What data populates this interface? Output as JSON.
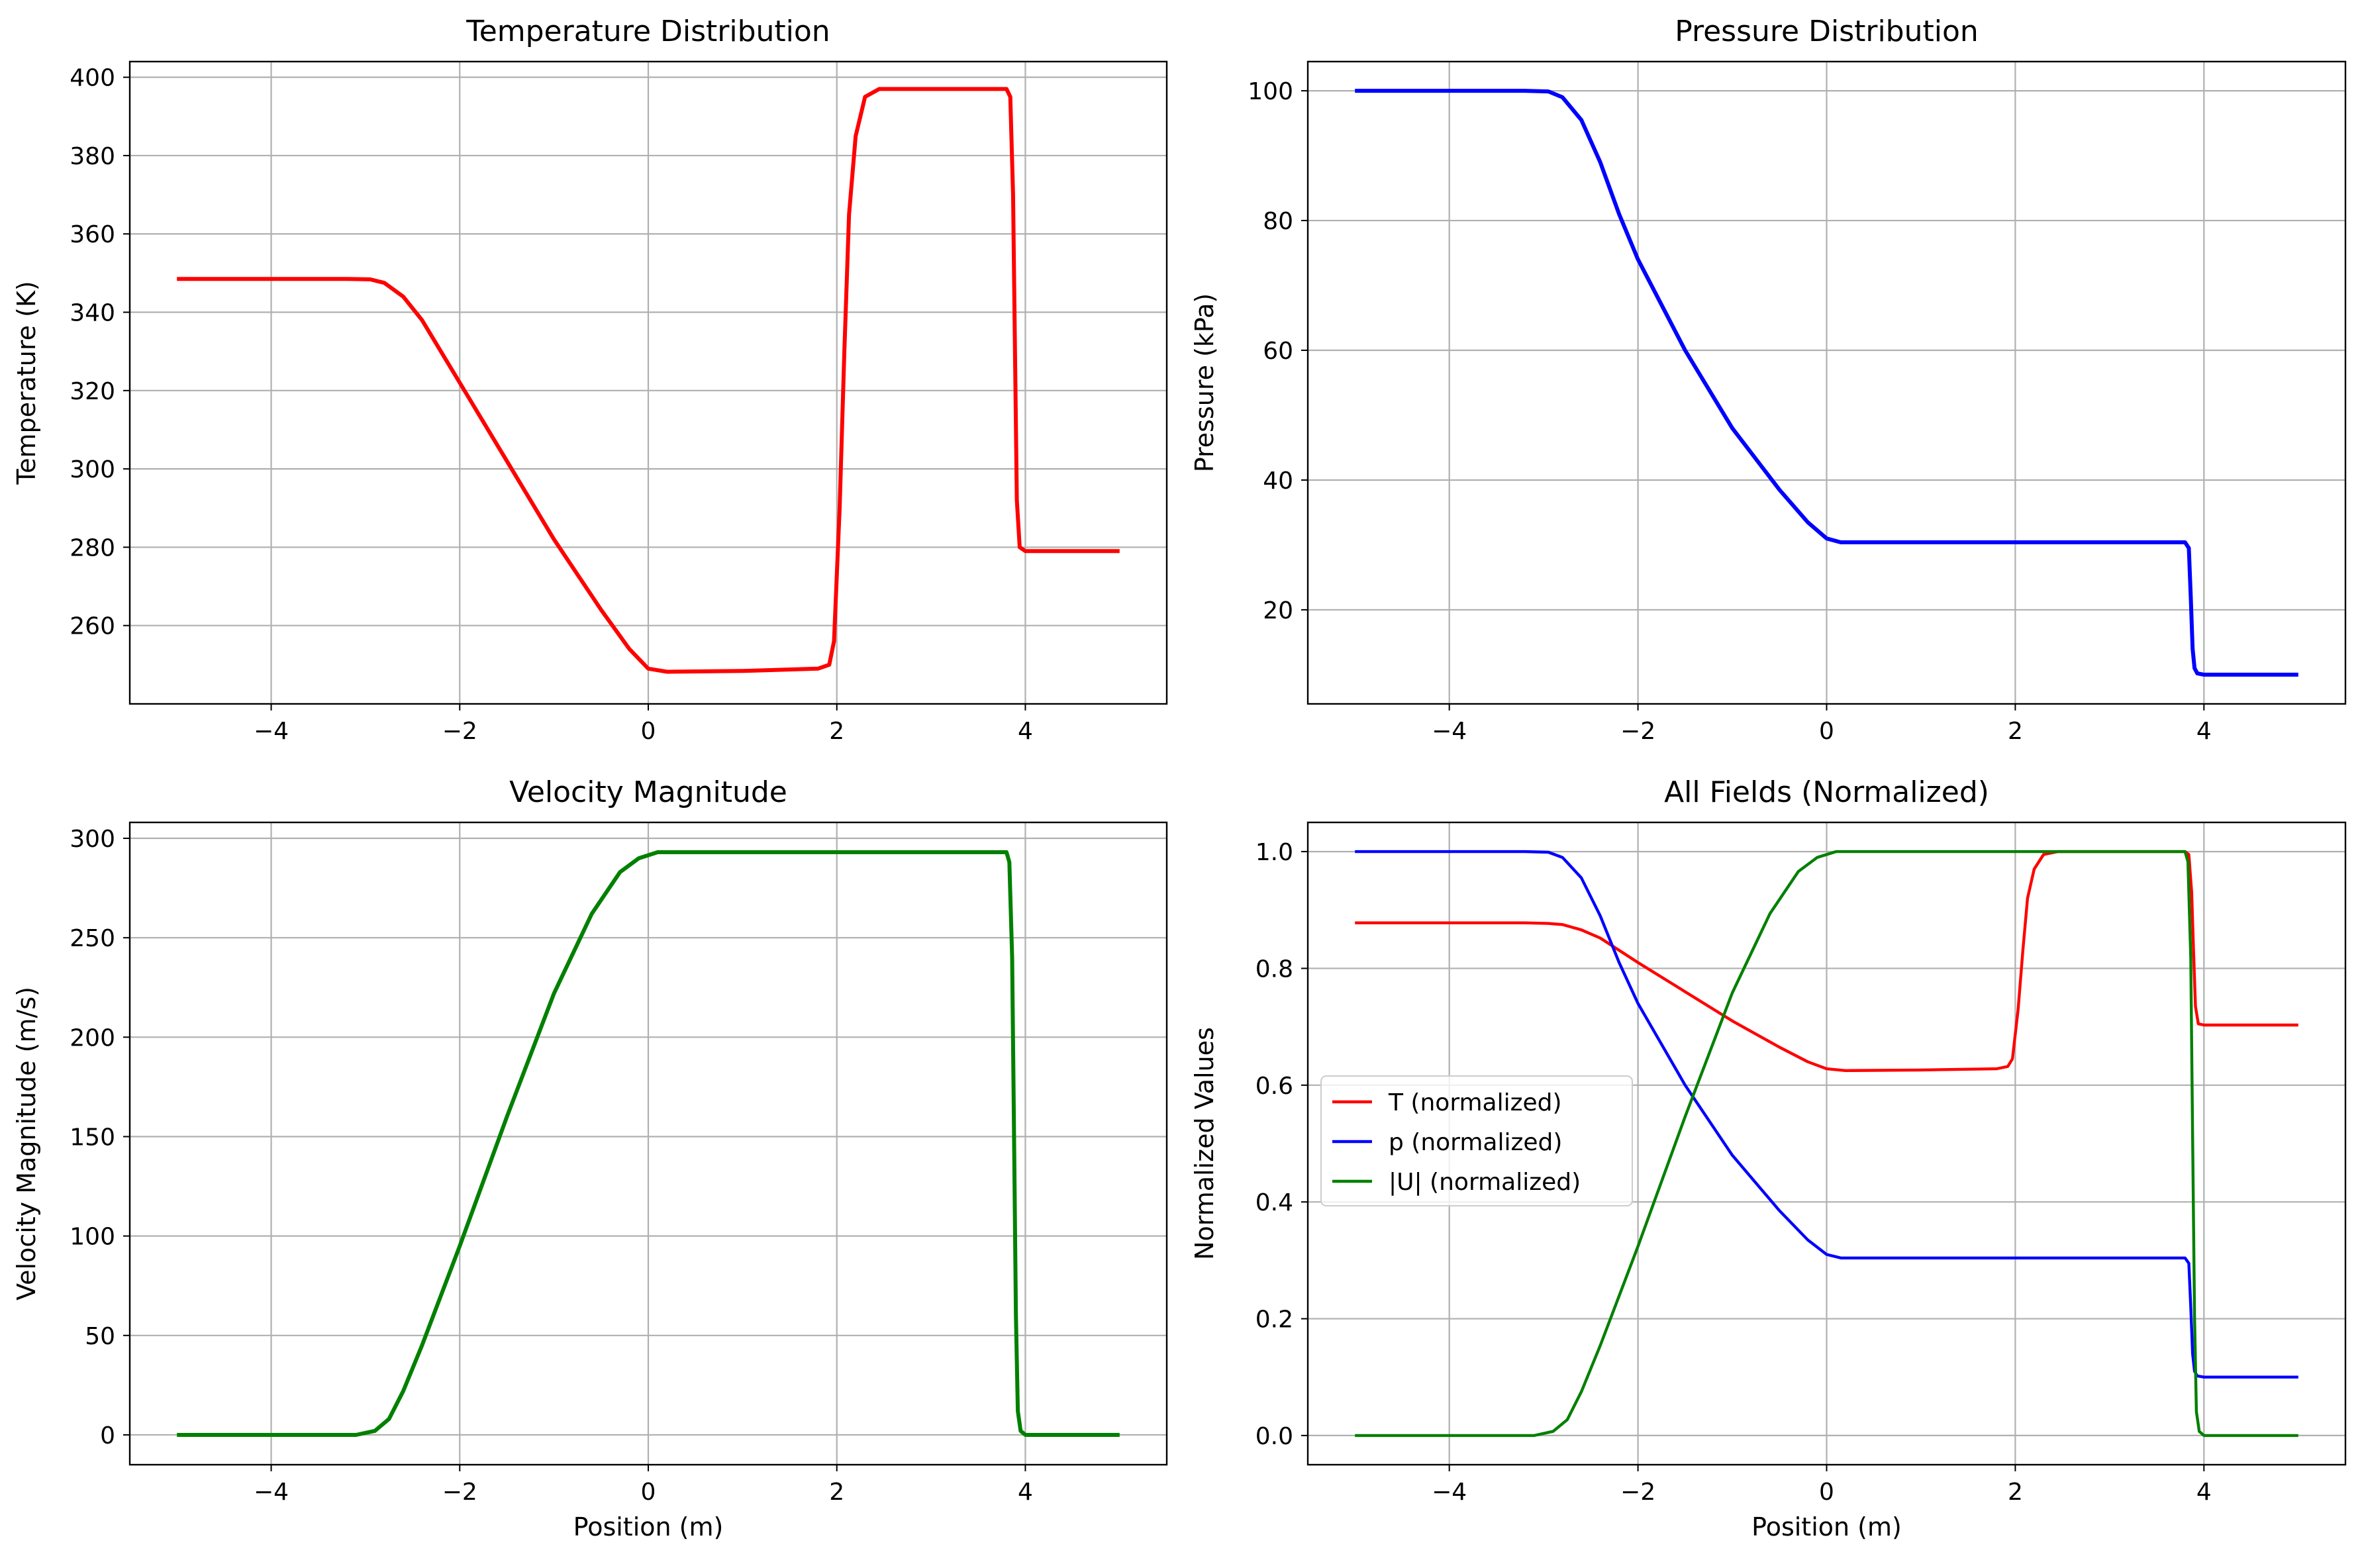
{
  "figure": {
    "background": "#ffffff",
    "grid_color": "#b0b0b0"
  },
  "chart_data": [
    {
      "id": "temperature",
      "type": "line",
      "title": "Temperature Distribution",
      "xlabel": "",
      "ylabel": "Temperature (K)",
      "xlim": [
        -5.5,
        5.5
      ],
      "ylim": [
        240,
        404
      ],
      "xticks": [
        -4,
        -2,
        0,
        2,
        4
      ],
      "yticks": [
        260,
        280,
        300,
        320,
        340,
        360,
        380,
        400
      ],
      "grid": true,
      "legend": null,
      "series": [
        {
          "color": "#ff0000",
          "points": [
            [
              -5,
              348.5
            ],
            [
              -3.2,
              348.5
            ],
            [
              -2.95,
              348.4
            ],
            [
              -2.8,
              347.5
            ],
            [
              -2.6,
              344
            ],
            [
              -2.4,
              338
            ],
            [
              -2,
              322
            ],
            [
              -1.5,
              302
            ],
            [
              -1,
              282
            ],
            [
              -0.5,
              264
            ],
            [
              -0.2,
              254
            ],
            [
              0,
              249
            ],
            [
              0.2,
              248.2
            ],
            [
              1,
              248.4
            ],
            [
              1.8,
              249
            ],
            [
              1.92,
              250
            ],
            [
              1.97,
              256
            ],
            [
              2.03,
              290
            ],
            [
              2.08,
              330
            ],
            [
              2.13,
              365
            ],
            [
              2.2,
              385
            ],
            [
              2.3,
              395
            ],
            [
              2.45,
              397
            ],
            [
              3.8,
              397
            ],
            [
              3.84,
              395
            ],
            [
              3.87,
              370
            ],
            [
              3.89,
              330
            ],
            [
              3.91,
              292
            ],
            [
              3.94,
              280
            ],
            [
              4,
              279
            ],
            [
              5,
              279
            ]
          ]
        }
      ]
    },
    {
      "id": "pressure",
      "type": "line",
      "title": "Pressure Distribution",
      "xlabel": "",
      "ylabel": "Pressure (kPa)",
      "xlim": [
        -5.5,
        5.5
      ],
      "ylim": [
        5.5,
        104.5
      ],
      "xticks": [
        -4,
        -2,
        0,
        2,
        4
      ],
      "yticks": [
        20,
        40,
        60,
        80,
        100
      ],
      "grid": true,
      "legend": null,
      "series": [
        {
          "color": "#0000ff",
          "points": [
            [
              -5,
              100
            ],
            [
              -3.2,
              100
            ],
            [
              -2.95,
              99.9
            ],
            [
              -2.8,
              99
            ],
            [
              -2.6,
              95.5
            ],
            [
              -2.4,
              89
            ],
            [
              -2.2,
              81
            ],
            [
              -2,
              74
            ],
            [
              -1.5,
              60
            ],
            [
              -1,
              48
            ],
            [
              -0.5,
              38.5
            ],
            [
              -0.2,
              33.5
            ],
            [
              0,
              31
            ],
            [
              0.15,
              30.4
            ],
            [
              1,
              30.4
            ],
            [
              3.8,
              30.4
            ],
            [
              3.84,
              29.5
            ],
            [
              3.86,
              22
            ],
            [
              3.88,
              14
            ],
            [
              3.9,
              11
            ],
            [
              3.93,
              10.2
            ],
            [
              4,
              10
            ],
            [
              5,
              10
            ]
          ]
        }
      ]
    },
    {
      "id": "velocity",
      "type": "line",
      "title": "Velocity Magnitude",
      "xlabel": "Position (m)",
      "ylabel": "Velocity Magnitude (m/s)",
      "xlim": [
        -5.5,
        5.5
      ],
      "ylim": [
        -15,
        308
      ],
      "xticks": [
        -4,
        -2,
        0,
        2,
        4
      ],
      "yticks": [
        0,
        50,
        100,
        150,
        200,
        250,
        300
      ],
      "grid": true,
      "legend": null,
      "series": [
        {
          "color": "#008000",
          "points": [
            [
              -5,
              0
            ],
            [
              -3.1,
              0
            ],
            [
              -2.9,
              2
            ],
            [
              -2.75,
              8
            ],
            [
              -2.6,
              22
            ],
            [
              -2.4,
              45
            ],
            [
              -2.2,
              70
            ],
            [
              -2,
              95
            ],
            [
              -1.5,
              160
            ],
            [
              -1,
              222
            ],
            [
              -0.6,
              262
            ],
            [
              -0.3,
              283
            ],
            [
              -0.1,
              290
            ],
            [
              0.1,
              293
            ],
            [
              3.8,
              293
            ],
            [
              3.83,
              288
            ],
            [
              3.86,
              240
            ],
            [
              3.88,
              150
            ],
            [
              3.9,
              60
            ],
            [
              3.92,
              12
            ],
            [
              3.95,
              2
            ],
            [
              4,
              0
            ],
            [
              5,
              0
            ]
          ]
        }
      ]
    },
    {
      "id": "normalized",
      "type": "line",
      "title": "All Fields (Normalized)",
      "xlabel": "Position (m)",
      "ylabel": "Normalized Values",
      "xlim": [
        -5.5,
        5.5
      ],
      "ylim": [
        -0.05,
        1.05
      ],
      "xticks": [
        -4,
        -2,
        0,
        2,
        4
      ],
      "yticks": [
        0.0,
        0.2,
        0.4,
        0.6,
        0.8,
        1.0
      ],
      "ytick_labels": [
        "0.0",
        "0.2",
        "0.4",
        "0.6",
        "0.8",
        "1.0"
      ],
      "grid": true,
      "legend": "center-left",
      "series": [
        {
          "name": "T (normalized)",
          "color": "#ff0000",
          "points": [
            [
              -5,
              0.878
            ],
            [
              -3.2,
              0.878
            ],
            [
              -2.95,
              0.877
            ],
            [
              -2.8,
              0.875
            ],
            [
              -2.6,
              0.866
            ],
            [
              -2.4,
              0.852
            ],
            [
              -2,
              0.81
            ],
            [
              -1.5,
              0.76
            ],
            [
              -1,
              0.71
            ],
            [
              -0.5,
              0.665
            ],
            [
              -0.2,
              0.64
            ],
            [
              0,
              0.628
            ],
            [
              0.2,
              0.625
            ],
            [
              1,
              0.626
            ],
            [
              1.8,
              0.628
            ],
            [
              1.92,
              0.632
            ],
            [
              1.97,
              0.645
            ],
            [
              2.03,
              0.73
            ],
            [
              2.08,
              0.83
            ],
            [
              2.13,
              0.92
            ],
            [
              2.2,
              0.97
            ],
            [
              2.3,
              0.995
            ],
            [
              2.45,
              1.0
            ],
            [
              3.8,
              1.0
            ],
            [
              3.84,
              0.995
            ],
            [
              3.87,
              0.93
            ],
            [
              3.89,
              0.83
            ],
            [
              3.91,
              0.735
            ],
            [
              3.94,
              0.705
            ],
            [
              4,
              0.703
            ],
            [
              5,
              0.703
            ]
          ]
        },
        {
          "name": "p (normalized)",
          "color": "#0000ff",
          "points": [
            [
              -5,
              1.0
            ],
            [
              -3.2,
              1.0
            ],
            [
              -2.95,
              0.999
            ],
            [
              -2.8,
              0.99
            ],
            [
              -2.6,
              0.955
            ],
            [
              -2.4,
              0.89
            ],
            [
              -2.2,
              0.81
            ],
            [
              -2,
              0.74
            ],
            [
              -1.5,
              0.6
            ],
            [
              -1,
              0.48
            ],
            [
              -0.5,
              0.385
            ],
            [
              -0.2,
              0.335
            ],
            [
              0,
              0.31
            ],
            [
              0.15,
              0.304
            ],
            [
              1,
              0.304
            ],
            [
              3.8,
              0.304
            ],
            [
              3.84,
              0.295
            ],
            [
              3.86,
              0.22
            ],
            [
              3.88,
              0.14
            ],
            [
              3.9,
              0.11
            ],
            [
              3.93,
              0.102
            ],
            [
              4,
              0.1
            ],
            [
              5,
              0.1
            ]
          ]
        },
        {
          "name": "|U| (normalized)",
          "color": "#008000",
          "points": [
            [
              -5,
              0
            ],
            [
              -3.1,
              0
            ],
            [
              -2.9,
              0.007
            ],
            [
              -2.75,
              0.027
            ],
            [
              -2.6,
              0.075
            ],
            [
              -2.4,
              0.154
            ],
            [
              -2.2,
              0.239
            ],
            [
              -2,
              0.324
            ],
            [
              -1.5,
              0.546
            ],
            [
              -1,
              0.758
            ],
            [
              -0.6,
              0.894
            ],
            [
              -0.3,
              0.966
            ],
            [
              -0.1,
              0.99
            ],
            [
              0.1,
              1.0
            ],
            [
              3.8,
              1.0
            ],
            [
              3.83,
              0.983
            ],
            [
              3.86,
              0.819
            ],
            [
              3.88,
              0.512
            ],
            [
              3.9,
              0.205
            ],
            [
              3.92,
              0.041
            ],
            [
              3.95,
              0.007
            ],
            [
              4,
              0
            ],
            [
              5,
              0
            ]
          ]
        }
      ]
    }
  ]
}
